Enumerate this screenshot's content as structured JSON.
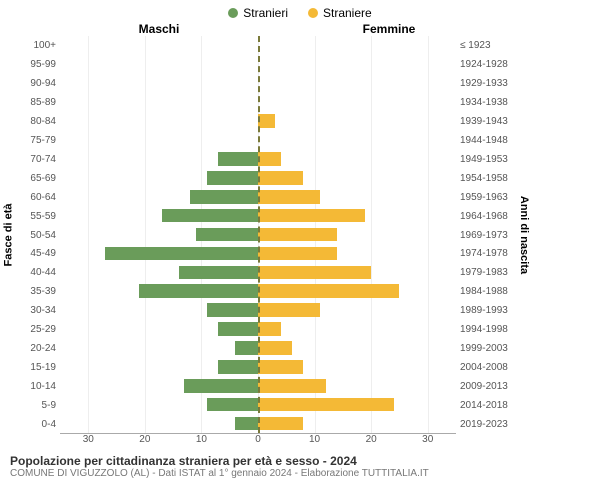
{
  "legend": {
    "male_label": "Stranieri",
    "female_label": "Straniere",
    "male_color": "#6a9c5a",
    "female_color": "#f4b936"
  },
  "headers": {
    "left": "Maschi",
    "right": "Femmine"
  },
  "axis_labels": {
    "left": "Fasce di età",
    "right": "Anni di nascita"
  },
  "age_bins": [
    "100+",
    "95-99",
    "90-94",
    "85-89",
    "80-84",
    "75-79",
    "70-74",
    "65-69",
    "60-64",
    "55-59",
    "50-54",
    "45-49",
    "40-44",
    "35-39",
    "30-34",
    "25-29",
    "20-24",
    "15-19",
    "10-14",
    "5-9",
    "0-4"
  ],
  "birth_bins": [
    "≤ 1923",
    "1924-1928",
    "1929-1933",
    "1934-1938",
    "1939-1943",
    "1944-1948",
    "1949-1953",
    "1954-1958",
    "1959-1963",
    "1964-1968",
    "1969-1973",
    "1974-1978",
    "1979-1983",
    "1984-1988",
    "1989-1993",
    "1994-1998",
    "1999-2003",
    "2004-2008",
    "2009-2013",
    "2014-2018",
    "2019-2023"
  ],
  "male_values": [
    0,
    0,
    0,
    0,
    0,
    0,
    7,
    9,
    12,
    17,
    11,
    27,
    14,
    21,
    9,
    7,
    4,
    7,
    13,
    9,
    4
  ],
  "female_values": [
    0,
    0,
    0,
    0,
    3,
    0,
    4,
    8,
    11,
    19,
    14,
    14,
    20,
    25,
    11,
    4,
    6,
    8,
    12,
    24,
    8
  ],
  "x_ticks": [
    30,
    20,
    10,
    0,
    10,
    20,
    30
  ],
  "x_max": 35,
  "grid_color": "#eeeeee",
  "footer": {
    "title": "Popolazione per cittadinanza straniera per età e sesso - 2024",
    "subtitle": "COMUNE DI VIGUZZOLO (AL) - Dati ISTAT al 1° gennaio 2024 - Elaborazione TUTTITALIA.IT"
  }
}
